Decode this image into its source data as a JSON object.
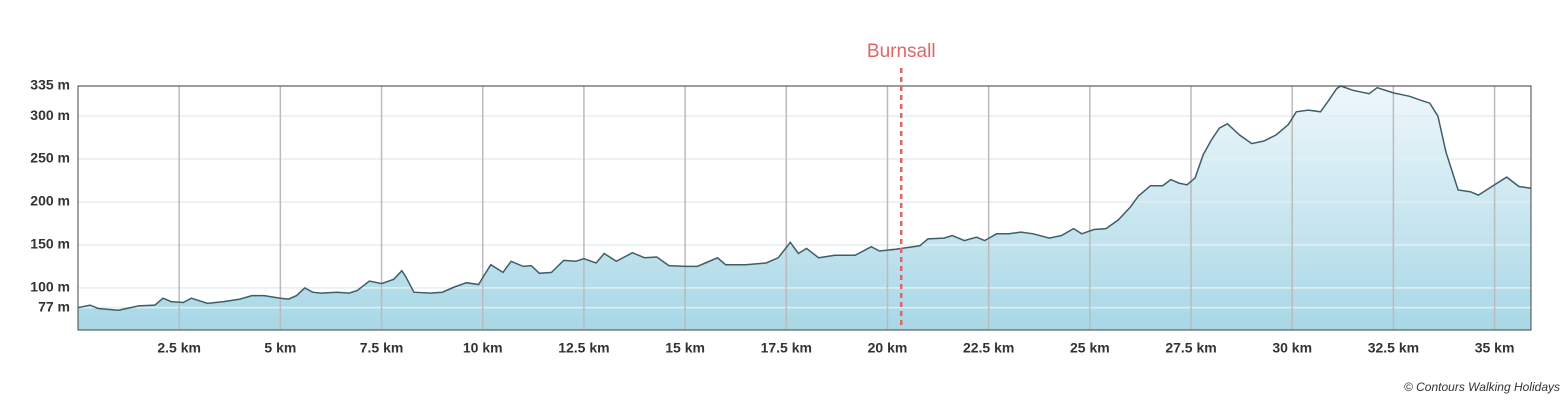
{
  "chart_data": {
    "type": "area",
    "x": [
      0,
      0.3,
      0.5,
      1.0,
      1.5,
      1.9,
      2.1,
      2.3,
      2.6,
      2.8,
      3.2,
      3.6,
      4.0,
      4.3,
      4.6,
      5.0,
      5.2,
      5.4,
      5.6,
      5.8,
      6.0,
      6.4,
      6.7,
      6.9,
      7.2,
      7.5,
      7.8,
      8.0,
      8.1,
      8.3,
      8.7,
      9.0,
      9.3,
      9.6,
      9.9,
      10.0,
      10.2,
      10.5,
      10.7,
      11.0,
      11.2,
      11.4,
      11.7,
      12.0,
      12.3,
      12.5,
      12.8,
      13.0,
      13.3,
      13.7,
      14.0,
      14.3,
      14.6,
      15.0,
      15.3,
      15.5,
      15.8,
      16.0,
      16.5,
      17.0,
      17.3,
      17.6,
      17.8,
      18.0,
      18.3,
      18.7,
      19.2,
      19.6,
      19.8,
      20.2,
      20.5,
      20.8,
      21.0,
      21.4,
      21.6,
      21.9,
      22.2,
      22.4,
      22.7,
      23.0,
      23.3,
      23.6,
      24.0,
      24.3,
      24.6,
      24.8,
      25.1,
      25.4,
      25.7,
      26.0,
      26.2,
      26.5,
      26.8,
      27.0,
      27.2,
      27.4,
      27.6,
      27.8,
      28.0,
      28.2,
      28.4,
      28.7,
      29.0,
      29.3,
      29.6,
      29.9,
      30.1,
      30.4,
      30.7,
      30.9,
      31.1,
      31.2,
      31.5,
      31.9,
      32.1,
      32.5,
      32.9,
      33.2,
      33.4,
      33.6,
      33.8,
      34.1,
      34.4,
      34.6,
      35.0,
      35.3,
      35.6,
      35.9
    ],
    "values": [
      77,
      80,
      76,
      74,
      79,
      80,
      88,
      84,
      83,
      88,
      82,
      84,
      87,
      91,
      91,
      88,
      87,
      91,
      100,
      95,
      94,
      95,
      94,
      97,
      108,
      105,
      110,
      120,
      113,
      95,
      94,
      95,
      101,
      106,
      104,
      112,
      127,
      118,
      131,
      125,
      126,
      117,
      118,
      132,
      131,
      134,
      129,
      140,
      131,
      141,
      135,
      136,
      126,
      125,
      125,
      129,
      135,
      127,
      127,
      129,
      135,
      153,
      140,
      146,
      135,
      138,
      138,
      148,
      143,
      145,
      147,
      149,
      157,
      158,
      161,
      155,
      159,
      155,
      163,
      163,
      165,
      163,
      158,
      161,
      169,
      163,
      168,
      169,
      179,
      194,
      207,
      219,
      219,
      226,
      222,
      220,
      228,
      255,
      272,
      286,
      291,
      278,
      268,
      271,
      278,
      290,
      305,
      307,
      305,
      318,
      332,
      335,
      330,
      326,
      333,
      327,
      323,
      318,
      315,
      300,
      258,
      214,
      212,
      208,
      220,
      229,
      218,
      216
    ],
    "xlim": [
      0,
      35.9
    ],
    "ylim": [
      51,
      335
    ],
    "xticks": [
      {
        "value": 2.5,
        "label": "2.5 km"
      },
      {
        "value": 5,
        "label": "5 km"
      },
      {
        "value": 7.5,
        "label": "7.5 km"
      },
      {
        "value": 10,
        "label": "10 km"
      },
      {
        "value": 12.5,
        "label": "12.5 km"
      },
      {
        "value": 15,
        "label": "15 km"
      },
      {
        "value": 17.5,
        "label": "17.5 km"
      },
      {
        "value": 20,
        "label": "20 km"
      },
      {
        "value": 22.5,
        "label": "22.5 km"
      },
      {
        "value": 25,
        "label": "25 km"
      },
      {
        "value": 27.5,
        "label": "27.5 km"
      },
      {
        "value": 30,
        "label": "30 km"
      },
      {
        "value": 32.5,
        "label": "32.5 km"
      },
      {
        "value": 35,
        "label": "35 km"
      }
    ],
    "yticks": [
      {
        "value": 77,
        "label": "77 m"
      },
      {
        "value": 100,
        "label": "100 m"
      },
      {
        "value": 150,
        "label": "150 m"
      },
      {
        "value": 200,
        "label": "200 m"
      },
      {
        "value": 250,
        "label": "250 m"
      },
      {
        "value": 300,
        "label": "300 m"
      },
      {
        "value": 335,
        "label": "335 m"
      }
    ],
    "color": "#3f5f68",
    "grid": true,
    "marker": {
      "label": "Burnsall",
      "x": 20.34,
      "color": "#e06666"
    },
    "credit": "© Contours Walking Holidays"
  }
}
